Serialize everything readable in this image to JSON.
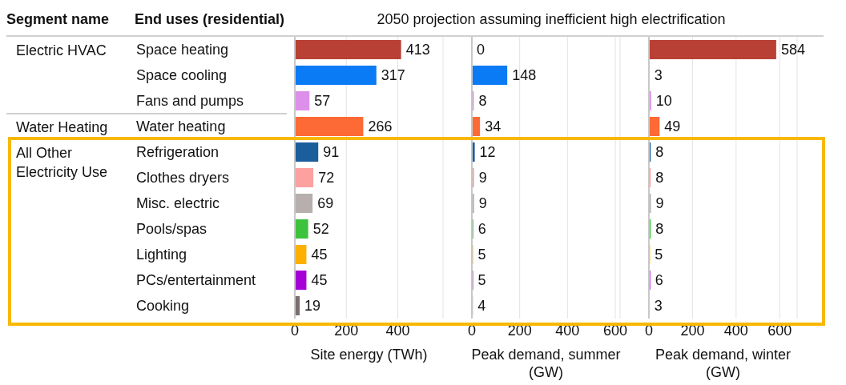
{
  "chart_data": [
    {
      "type": "bar",
      "orientation": "horizontal",
      "title": "2050 projection assuming inefficient high electrification",
      "ylabel": "End uses (residential)",
      "annotations": [
        "Segment name",
        "Electric HVAC",
        "Water Heating",
        "All Other Electricity Use"
      ],
      "xlabel": "Site energy (TWh)",
      "categories": [
        "Space heating",
        "Space cooling",
        "Fans and pumps",
        "Water heating",
        "Refrigeration",
        "Clothes dryers",
        "Misc. electric",
        "Pools/spas",
        "Lighting",
        "PCs/entertainment",
        "Cooking"
      ],
      "values": [
        413,
        317,
        57,
        266,
        91,
        72,
        69,
        52,
        45,
        45,
        19
      ],
      "colors": [
        "#b94034",
        "#0a7af5",
        "#dd90ea",
        "#fd6a36",
        "#1b5e9c",
        "#fda0a0",
        "#b7aeae",
        "#3cc23c",
        "#fdb000",
        "#a600d8",
        "#7a6e6e"
      ],
      "xlim": [
        0,
        576
      ],
      "xticks": [
        0,
        200,
        400
      ],
      "grid": "x",
      "data_labels": true
    },
    {
      "type": "bar",
      "orientation": "horizontal",
      "xlabel": "Peak demand, summer (GW)",
      "values": [
        0,
        148,
        8,
        34,
        12,
        9,
        9,
        6,
        5,
        5,
        4
      ],
      "colors": [
        "#b94034",
        "#0a7af5",
        "#dd90ea",
        "#fd6a36",
        "#1b5e9c",
        "#fda0a0",
        "#b7aeae",
        "#3cc23c",
        "#fdb000",
        "#a600d8",
        "#7a6e6e"
      ],
      "xlim": [
        0,
        620
      ],
      "xticks": [
        0,
        200,
        400,
        600
      ],
      "grid": "x",
      "data_labels": true,
      "tick_labels": "x"
    },
    {
      "type": "bar",
      "orientation": "horizontal",
      "xlabel": "Peak demand, winter (GW)",
      "values": [
        584,
        3,
        10,
        49,
        8,
        8,
        9,
        8,
        5,
        6,
        3
      ],
      "colors": [
        "#b94034",
        "#0a7af5",
        "#dd90ea",
        "#fd6a36",
        "#1b5e9c",
        "#fda0a0",
        "#b7aeae",
        "#3cc23c",
        "#fdb000",
        "#a600d8",
        "#7a6e6e"
      ],
      "xlim": [
        0,
        680
      ],
      "xticks": [
        0,
        200,
        400,
        600
      ],
      "grid": "x",
      "data_labels": true,
      "tick_labels": "x"
    }
  ]
}
